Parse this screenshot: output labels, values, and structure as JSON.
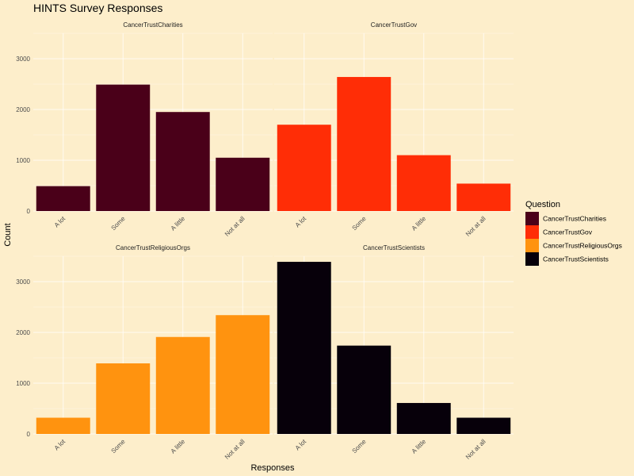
{
  "chart_data": {
    "type": "bar",
    "title": "HINTS Survey Responses",
    "xlabel": "Responses",
    "ylabel": "Count",
    "categories": [
      "A lot",
      "Some",
      "A little",
      "Not at all"
    ],
    "ylim": [
      0,
      3500
    ],
    "yticks": [
      0,
      1000,
      2000,
      3000
    ],
    "grid": true,
    "legend_title": "Question",
    "legend_position": "right",
    "panels": [
      {
        "name": "CancerTrustCharities",
        "color": "#4a0019",
        "values": [
          490,
          2490,
          1950,
          1050
        ]
      },
      {
        "name": "CancerTrustGov",
        "color": "#ff2d06",
        "values": [
          1700,
          2640,
          1100,
          540
        ]
      },
      {
        "name": "CancerTrustReligiousOrgs",
        "color": "#ff930f",
        "values": [
          320,
          1390,
          1910,
          2340
        ]
      },
      {
        "name": "CancerTrustScientists",
        "color": "#07000a",
        "values": [
          3390,
          1740,
          610,
          320
        ]
      }
    ]
  }
}
